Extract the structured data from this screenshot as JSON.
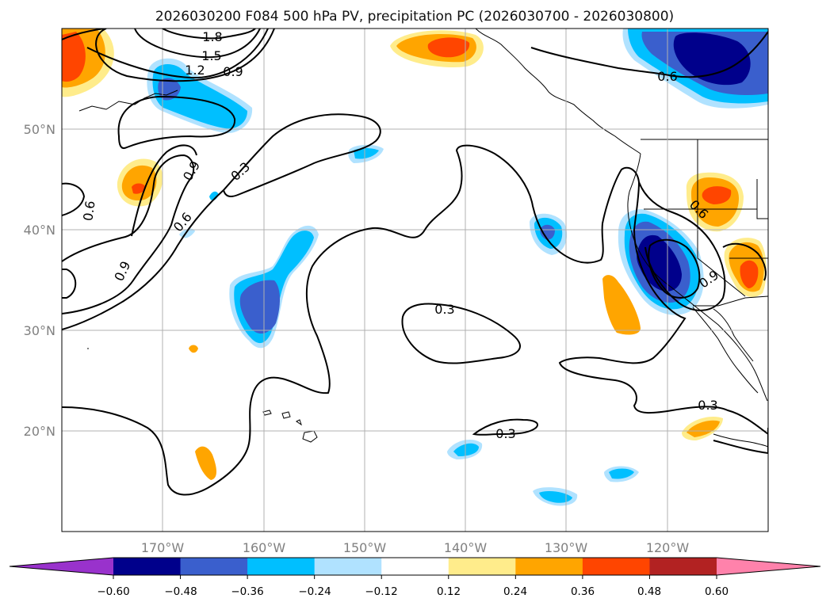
{
  "chart_data": {
    "type": "map-contour",
    "title": "2026030200 F084 500 hPa PV, precipitation PC (2026030700 - 2026030800)",
    "projection": "PlateCarree",
    "lon_range": [
      180,
      -110
    ],
    "lat_range": [
      10,
      60
    ],
    "grid": true,
    "x_ticks": [
      {
        "lon": -170,
        "label": "170°W"
      },
      {
        "lon": -160,
        "label": "160°W"
      },
      {
        "lon": -150,
        "label": "150°W"
      },
      {
        "lon": -140,
        "label": "140°W"
      },
      {
        "lon": -130,
        "label": "130°W"
      },
      {
        "lon": -120,
        "label": "120°W"
      }
    ],
    "y_ticks": [
      {
        "lat": 20,
        "label": "20°N"
      },
      {
        "lat": 30,
        "label": "30°N"
      },
      {
        "lat": 40,
        "label": "40°N"
      },
      {
        "lat": 50,
        "label": "50°N"
      }
    ],
    "contour_labels": [
      {
        "text": "1.8",
        "lon": -165.2,
        "lat": 59.4
      },
      {
        "text": "1.5",
        "lon": -165.3,
        "lat": 57.3
      },
      {
        "text": "1.2",
        "lon": -168.1,
        "lat": 55.9
      },
      {
        "text": "0.9",
        "lon": -163.2,
        "lat": 55.6
      },
      {
        "text": "0.9",
        "lon": -166.9,
        "lat": 45.4
      },
      {
        "text": "0.3",
        "lon": -162.1,
        "lat": 45.4
      },
      {
        "text": "0.6",
        "lon": -177.3,
        "lat": 42.0
      },
      {
        "text": "0.6",
        "lon": -168.2,
        "lat": 40.8
      },
      {
        "text": "0.9",
        "lon": -174.2,
        "lat": 35.6
      },
      {
        "text": "0.3",
        "lon": -141.2,
        "lat": 31.9
      },
      {
        "text": "0.3",
        "lon": -136.0,
        "lat": 19.9
      },
      {
        "text": "0.6",
        "lon": -118.2,
        "lat": 55.3
      },
      {
        "text": "0.6",
        "lon": -116.2,
        "lat": 41.6
      },
      {
        "text": "0.9",
        "lon": -116.2,
        "lat": 34.8
      },
      {
        "text": "0.3",
        "lon": -115.8,
        "lat": 22.6
      }
    ],
    "colorbar": {
      "levels": [
        -0.6,
        -0.48,
        -0.36,
        -0.24,
        -0.12,
        0.12,
        0.24,
        0.36,
        0.48,
        0.6
      ],
      "tick_labels": [
        "−0.60",
        "−0.48",
        "−0.36",
        "−0.24",
        "−0.12",
        "0.12",
        "0.24",
        "0.36",
        "0.48",
        "0.60"
      ],
      "colors": [
        "#9932cc",
        "#00008b",
        "#3a5fcd",
        "#00bfff",
        "#b0e2ff",
        "#ffffff",
        "#ffec8b",
        "#ffa500",
        "#ff4500",
        "#b22222",
        "#ff82ab"
      ],
      "extend": "both"
    }
  }
}
